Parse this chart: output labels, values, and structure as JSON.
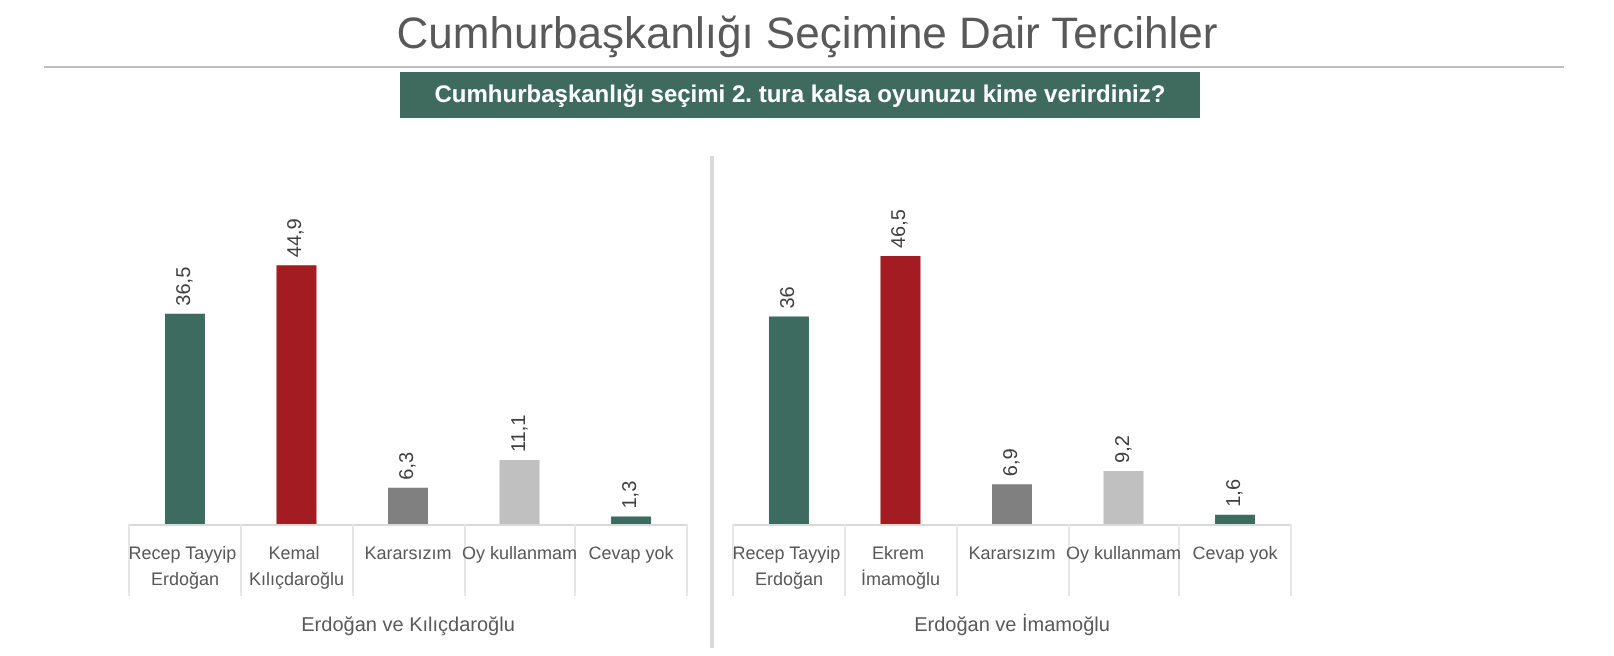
{
  "chart_data": [
    {
      "type": "bar",
      "title": "Cumhurbaşkanlığı Seçimine Dair Tercihler",
      "subtitle": "Cumhurbaşkanlığı seçimi 2. tura kalsa oyunuzu kime verirdiniz?",
      "xlabel": "Erdoğan ve Kılıçdaroğlu",
      "categories": [
        "Recep Tayyip Erdoğan",
        "Kemal Kılıçdaroğlu",
        "Kararsızım",
        "Oy kullanmam",
        "Cevap yok"
      ],
      "values": [
        36.5,
        44.9,
        6.3,
        11.1,
        1.3
      ],
      "value_labels": [
        "36,5",
        "44,9",
        "6,3",
        "11,1",
        "1,3"
      ],
      "colors": [
        "#3d6b5f",
        "#a31c22",
        "#808080",
        "#c0c0c0",
        "#3d6b5f"
      ]
    },
    {
      "type": "bar",
      "xlabel": "Erdoğan ve İmamoğlu",
      "categories": [
        "Recep Tayyip Erdoğan",
        "Ekrem İmamoğlu",
        "Kararsızım",
        "Oy kullanmam",
        "Cevap yok"
      ],
      "values": [
        36,
        46.5,
        6.9,
        9.2,
        1.6
      ],
      "value_labels": [
        "36",
        "46,5",
        "6,9",
        "9,2",
        "1,6"
      ],
      "colors": [
        "#3d6b5f",
        "#a31c22",
        "#808080",
        "#c0c0c0",
        "#3d6b5f"
      ]
    }
  ]
}
